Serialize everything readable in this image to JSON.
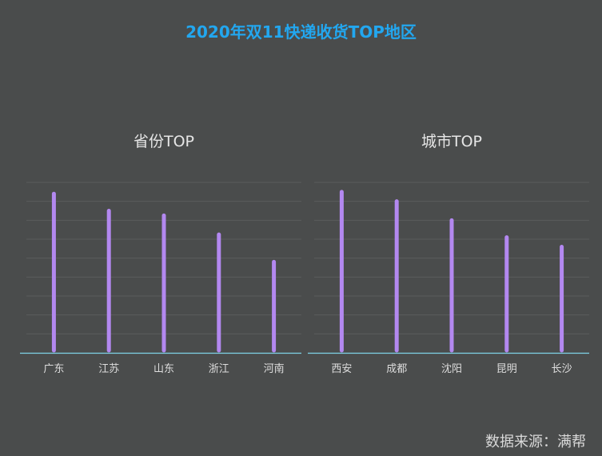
{
  "page_title": "2020年双11快递收货TOP地区",
  "source": "数据来源：满帮",
  "chart_data": [
    {
      "type": "bar",
      "title": "省份TOP",
      "categories": [
        "广东",
        "江苏",
        "山东",
        "浙江",
        "河南"
      ],
      "values": [
        8.4,
        7.5,
        7.25,
        6.25,
        4.8
      ],
      "ylim": [
        0,
        9
      ],
      "grid": true,
      "colors": {
        "bar": "#b388f0",
        "axis": "#7fd4e8",
        "grid": "#5b5d5d",
        "label": "#dddddd"
      }
    },
    {
      "type": "bar",
      "title": "城市TOP",
      "categories": [
        "西安",
        "成都",
        "沈阳",
        "昆明",
        "长沙"
      ],
      "values": [
        8.5,
        8.0,
        7.0,
        6.1,
        5.6
      ],
      "ylim": [
        0,
        9
      ],
      "grid": true,
      "colors": {
        "bar": "#b388f0",
        "axis": "#7fd4e8",
        "grid": "#5b5d5d",
        "label": "#dddddd"
      }
    }
  ]
}
